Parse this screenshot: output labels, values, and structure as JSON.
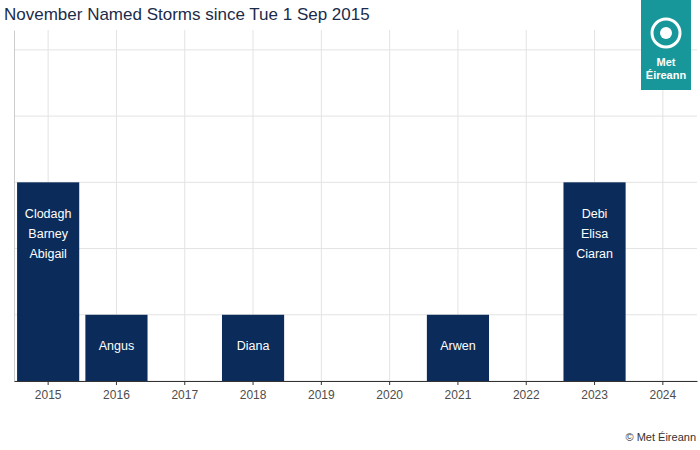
{
  "chart_data": {
    "type": "bar",
    "title": "November Named Storms since Tue 1 Sep 2015",
    "categories": [
      "2015",
      "2016",
      "2017",
      "2018",
      "2019",
      "2020",
      "2021",
      "2022",
      "2023",
      "2024"
    ],
    "values": [
      3,
      1,
      0,
      1,
      0,
      0,
      1,
      0,
      3,
      0
    ],
    "bar_labels": [
      [
        "Clodagh",
        "Barney",
        "Abigail"
      ],
      [
        "Angus"
      ],
      [],
      [
        "Diana"
      ],
      [],
      [],
      [
        "Arwen"
      ],
      [],
      [
        "Debi",
        "Elisa",
        "Ciaran"
      ],
      []
    ],
    "color": "#0b2c5a",
    "ylim": [
      0,
      5.3
    ],
    "yticks": [
      0,
      1,
      2,
      3,
      4,
      5
    ],
    "grid": true,
    "tick_labels": "x",
    "source": "© Met Éireann",
    "logo": "Met Éireann"
  }
}
